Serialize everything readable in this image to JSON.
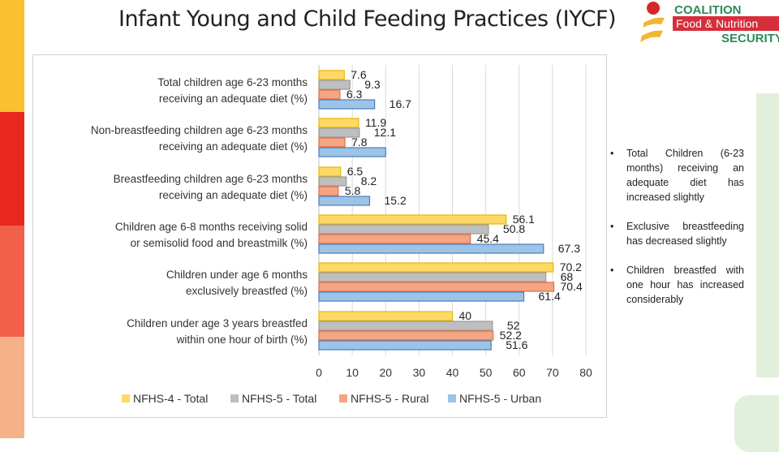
{
  "title": "Infant Young and Child Feeding Practices (IYCF)",
  "logo": {
    "line1": "COALITION",
    "line2": "Food & Nutrition",
    "line3": "SECURITY"
  },
  "notes": [
    "Total Children (6-23 months) receiving an adequate diet has increased slightly",
    "Exclusive breastfeeding has decreased slightly",
    "Children breastfed with one hour has increased considerably"
  ],
  "colors": {
    "stripes": [
      "#fbc02d",
      "#e8281e",
      "#f26049",
      "#f6b08a"
    ],
    "panel": "#e2efda"
  },
  "chart_data": {
    "type": "bar",
    "orientation": "horizontal",
    "categories": [
      "Total children age 6-23 months receiving an adequate diet (%)",
      "Non-breastfeeding children age 6-23 months receiving an adequate diet (%)",
      "Breastfeeding children age 6-23 months receiving an adequate diet (%)",
      "Children age 6-8 months receiving solid or semisolid food and breastmilk (%)",
      "Children under age 6 months exclusively breastfed (%)",
      "Children under age 3 years breastfed within one hour of birth (%)"
    ],
    "series": [
      {
        "name": "NFHS-4 - Total",
        "color": "#ffd966",
        "values": [
          7.6,
          11.9,
          6.5,
          56.1,
          70.2,
          40
        ]
      },
      {
        "name": "NFHS-5 - Total",
        "color": "#bfbfbf",
        "values": [
          9.3,
          12.1,
          8.2,
          50.8,
          68,
          52
        ]
      },
      {
        "name": "NFHS-5 - Rural",
        "color": "#f4a582",
        "values": [
          6.3,
          7.8,
          5.8,
          45.4,
          70.4,
          52.2
        ]
      },
      {
        "name": "NFHS-5 - Urban",
        "color": "#9dc3e6",
        "values": [
          16.7,
          20,
          15.2,
          67.3,
          61.4,
          51.6
        ]
      }
    ],
    "data_labels": [
      [
        "7.6",
        "11.9",
        "6.5",
        "56.1",
        "70.2",
        "40"
      ],
      [
        "9.3",
        "12.1",
        "8.2",
        "50.8",
        "68",
        "52"
      ],
      [
        "6.3",
        "7.8",
        "5.8",
        "45.4",
        "70.4",
        "52.2"
      ],
      [
        "16.7",
        null,
        "15.2",
        "67.3",
        "61.4",
        "51.6"
      ]
    ],
    "xticks": [
      "0",
      "10",
      "20",
      "30",
      "40",
      "50",
      "60",
      "70",
      "80"
    ],
    "xlim": [
      0,
      80
    ],
    "grid": true,
    "legend": "bottom"
  }
}
